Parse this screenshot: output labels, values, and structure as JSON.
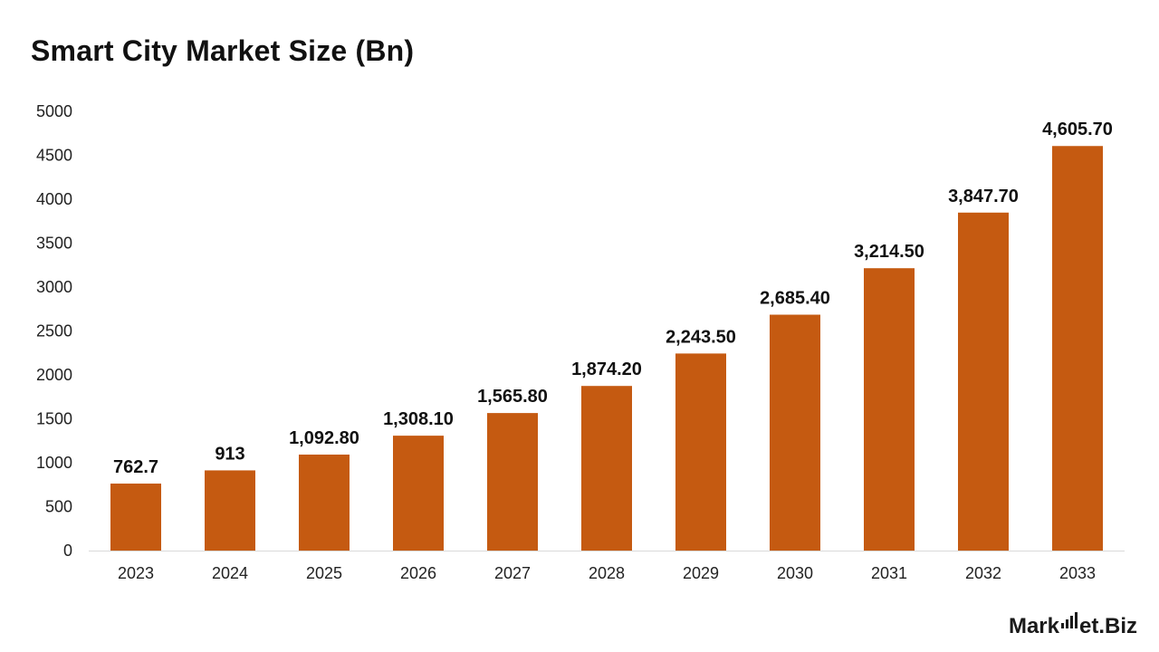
{
  "chart_data": {
    "type": "bar",
    "title": "Smart City Market Size (Bn)",
    "categories": [
      "2023",
      "2024",
      "2025",
      "2026",
      "2027",
      "2028",
      "2029",
      "2030",
      "2031",
      "2032",
      "2033"
    ],
    "values": [
      762.7,
      913,
      1092.8,
      1308.1,
      1565.8,
      1874.2,
      2243.5,
      2685.4,
      3214.5,
      3847.7,
      4605.7
    ],
    "value_labels": [
      "762.7",
      "913",
      "1,092.80",
      "1,308.10",
      "1,565.80",
      "1,874.20",
      "2,243.50",
      "2,685.40",
      "3,214.50",
      "3,847.70",
      "4,605.70"
    ],
    "yticks": [
      "0",
      "500",
      "1000",
      "1500",
      "2000",
      "2500",
      "3000",
      "3500",
      "4000",
      "4500",
      "5000"
    ],
    "ylim": [
      0,
      5000
    ],
    "grid": false,
    "bar_color": "#C55A11"
  },
  "brand": {
    "name_part1": "Mark",
    "name_part2": "et.Biz"
  }
}
